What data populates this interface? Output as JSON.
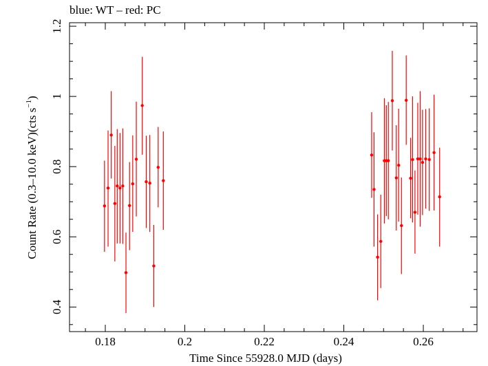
{
  "chart_data": {
    "type": "scatter",
    "title": "blue: WT – red: PC",
    "xlabel": "Time Since 55928.0 MJD (days)",
    "ylabel_main": "Count Rate (0.3–10.0 keV)(cts s",
    "ylabel_sup": "−1",
    "ylabel_tail": ")",
    "xlim": [
      0.171,
      0.2735
    ],
    "ylim": [
      0.33,
      1.21
    ],
    "xticks": [
      0.18,
      0.2,
      0.22,
      0.24,
      0.26
    ],
    "xtick_labels": [
      "0.18",
      "0.2",
      "0.22",
      "0.24",
      "0.26"
    ],
    "yticks": [
      0.4,
      0.6,
      0.8,
      1.0,
      1.2
    ],
    "ytick_labels": [
      "0.4",
      "0.6",
      "0.8",
      "1",
      "1.2"
    ],
    "x_minor_step": 0.005,
    "y_minor_step": 0.05,
    "colors": {
      "PC": "#ff0000",
      "WT": "#0000ff"
    },
    "series": [
      {
        "color": "#ff0000",
        "points": [
          {
            "x": 0.1798,
            "y": 0.688,
            "lo": 0.557,
            "hi": 0.817
          },
          {
            "x": 0.1807,
            "y": 0.739,
            "lo": 0.572,
            "hi": 0.903
          },
          {
            "x": 0.1815,
            "y": 0.89,
            "lo": 0.766,
            "hi": 1.015
          },
          {
            "x": 0.1824,
            "y": 0.695,
            "lo": 0.53,
            "hi": 0.859
          },
          {
            "x": 0.183,
            "y": 0.745,
            "lo": 0.581,
            "hi": 0.907
          },
          {
            "x": 0.1837,
            "y": 0.739,
            "lo": 0.581,
            "hi": 0.896
          },
          {
            "x": 0.1844,
            "y": 0.745,
            "lo": 0.58,
            "hi": 0.909
          },
          {
            "x": 0.1852,
            "y": 0.498,
            "lo": 0.383,
            "hi": 0.612
          },
          {
            "x": 0.1861,
            "y": 0.689,
            "lo": 0.562,
            "hi": 0.813
          },
          {
            "x": 0.1869,
            "y": 0.751,
            "lo": 0.614,
            "hi": 0.889
          },
          {
            "x": 0.1878,
            "y": 0.821,
            "lo": 0.658,
            "hi": 0.985
          },
          {
            "x": 0.1893,
            "y": 0.974,
            "lo": 0.834,
            "hi": 1.113
          },
          {
            "x": 0.1903,
            "y": 0.757,
            "lo": 0.625,
            "hi": 0.888
          },
          {
            "x": 0.1912,
            "y": 0.753,
            "lo": 0.614,
            "hi": 0.89
          },
          {
            "x": 0.1922,
            "y": 0.517,
            "lo": 0.4,
            "hi": 0.634
          },
          {
            "x": 0.1933,
            "y": 0.798,
            "lo": 0.684,
            "hi": 0.913
          },
          {
            "x": 0.1946,
            "y": 0.76,
            "lo": 0.62,
            "hi": 0.9
          },
          {
            "x": 0.247,
            "y": 0.833,
            "lo": 0.711,
            "hi": 0.955
          },
          {
            "x": 0.2476,
            "y": 0.735,
            "lo": 0.572,
            "hi": 0.898
          },
          {
            "x": 0.2485,
            "y": 0.542,
            "lo": 0.419,
            "hi": 0.664
          },
          {
            "x": 0.2493,
            "y": 0.587,
            "lo": 0.454,
            "hi": 0.72
          },
          {
            "x": 0.2502,
            "y": 0.817,
            "lo": 0.638,
            "hi": 0.995
          },
          {
            "x": 0.2507,
            "y": 0.817,
            "lo": 0.659,
            "hi": 0.975
          },
          {
            "x": 0.2512,
            "y": 0.817,
            "lo": 0.65,
            "hi": 0.984
          },
          {
            "x": 0.2522,
            "y": 0.988,
            "lo": 0.846,
            "hi": 1.13
          },
          {
            "x": 0.2532,
            "y": 0.768,
            "lo": 0.618,
            "hi": 0.918
          },
          {
            "x": 0.2538,
            "y": 0.804,
            "lo": 0.643,
            "hi": 0.965
          },
          {
            "x": 0.2545,
            "y": 0.632,
            "lo": 0.494,
            "hi": 0.769
          },
          {
            "x": 0.2557,
            "y": 0.989,
            "lo": 0.862,
            "hi": 1.117
          },
          {
            "x": 0.2568,
            "y": 0.767,
            "lo": 0.653,
            "hi": 0.882
          },
          {
            "x": 0.2573,
            "y": 0.82,
            "lo": 0.641,
            "hi": 1.0
          },
          {
            "x": 0.2579,
            "y": 0.67,
            "lo": 0.552,
            "hi": 0.789
          },
          {
            "x": 0.2586,
            "y": 0.822,
            "lo": 0.663,
            "hi": 0.982
          },
          {
            "x": 0.2592,
            "y": 0.822,
            "lo": 0.629,
            "hi": 1.015
          },
          {
            "x": 0.2598,
            "y": 0.812,
            "lo": 0.662,
            "hi": 0.962
          },
          {
            "x": 0.2606,
            "y": 0.822,
            "lo": 0.68,
            "hi": 0.964
          },
          {
            "x": 0.2615,
            "y": 0.82,
            "lo": 0.674,
            "hi": 0.966
          },
          {
            "x": 0.2627,
            "y": 0.84,
            "lo": 0.675,
            "hi": 1.005
          },
          {
            "x": 0.2641,
            "y": 0.714,
            "lo": 0.572,
            "hi": 0.854
          }
        ]
      }
    ]
  }
}
